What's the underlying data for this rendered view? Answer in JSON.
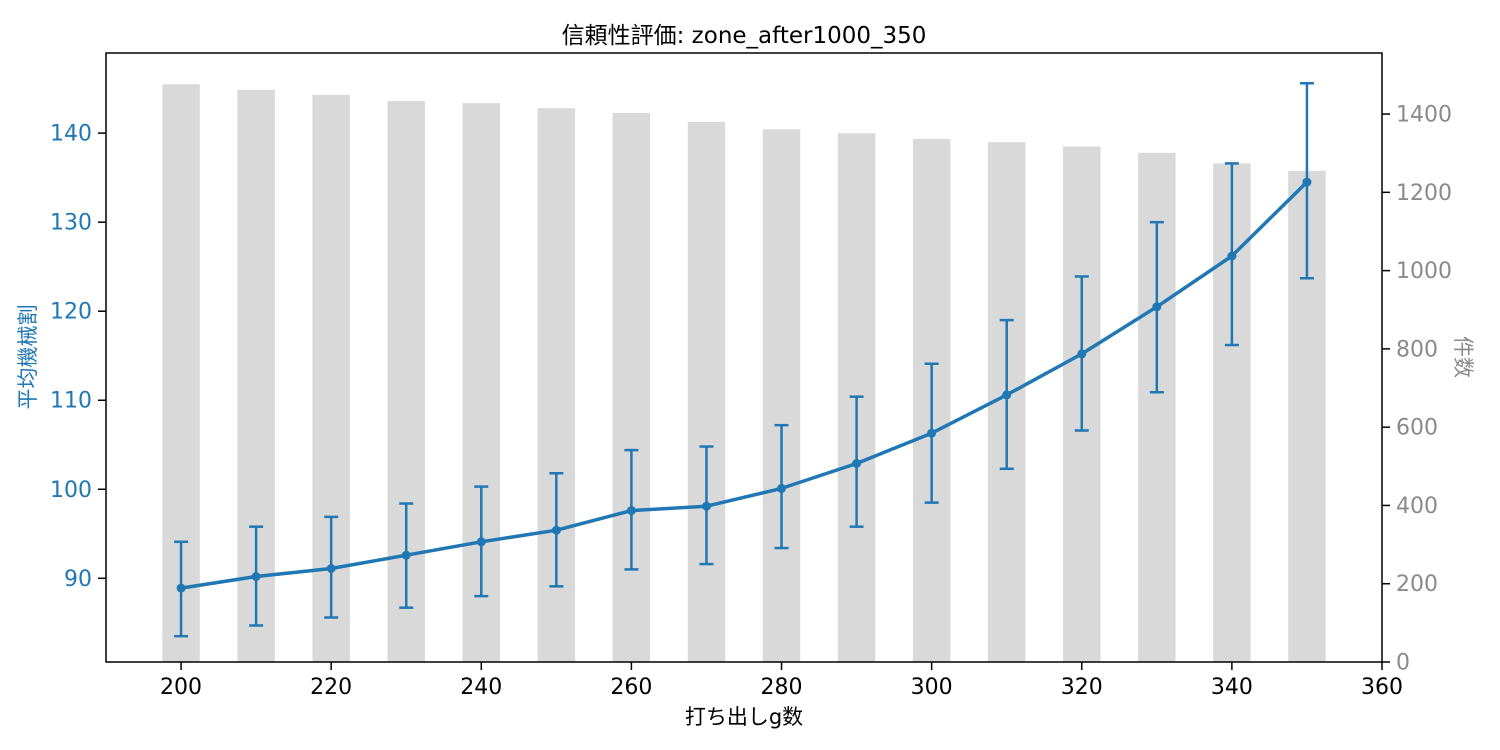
{
  "figure": {
    "title": "信頼性評価: zone_after1000_350",
    "xlabel": "打ち出しg数",
    "ylabel_left": "平均機械割",
    "ylabel_right": "件数"
  },
  "colors": {
    "line": "#1f77b4",
    "marker": "#1f77b4",
    "error_bar": "#1f77b4",
    "bar": "#d9d9d9",
    "left_tick_label": "#1f77b4",
    "right_tick_label": "#8a8a8a",
    "x_tick_label": "#000000",
    "spine": "#000000",
    "background": "#ffffff"
  },
  "chart_data": {
    "type": "composite",
    "title": "信頼性評価: zone_after1000_350",
    "xlabel": "打ち出しg数",
    "ylabel_left": "平均機械割",
    "ylabel_right": "件数",
    "grid": false,
    "legend": "none",
    "x": [
      200,
      210,
      220,
      230,
      240,
      250,
      260,
      270,
      280,
      290,
      300,
      310,
      320,
      330,
      340,
      350
    ],
    "series": [
      {
        "name": "平均機械割",
        "type": "line_with_error_bars",
        "axis": "left",
        "mean": [
          88.9,
          90.2,
          91.1,
          92.6,
          94.1,
          95.4,
          97.6,
          98.1,
          100.1,
          102.9,
          106.3,
          110.6,
          115.2,
          120.5,
          126.2,
          134.5
        ],
        "err_low": [
          83.5,
          84.7,
          85.6,
          86.7,
          88.0,
          89.1,
          91.0,
          91.6,
          93.4,
          95.8,
          98.5,
          102.3,
          106.6,
          110.9,
          116.2,
          123.7
        ],
        "err_high": [
          94.1,
          95.8,
          96.9,
          98.4,
          100.3,
          101.8,
          104.4,
          104.8,
          107.2,
          110.4,
          114.1,
          119.0,
          123.9,
          130.0,
          136.6,
          145.6
        ]
      },
      {
        "name": "件数",
        "type": "bar",
        "axis": "right",
        "values": [
          1476,
          1462,
          1449,
          1433,
          1428,
          1415,
          1403,
          1380,
          1361,
          1351,
          1336,
          1328,
          1317,
          1301,
          1274,
          1255
        ]
      }
    ],
    "x_ticks": [
      200,
      220,
      240,
      260,
      280,
      300,
      320,
      340,
      360
    ],
    "left_y_ticks": [
      90,
      100,
      110,
      120,
      130,
      140
    ],
    "right_y_ticks": [
      0,
      200,
      400,
      600,
      800,
      1000,
      1200,
      1400
    ],
    "xlim": [
      190,
      360
    ],
    "ylim_left": [
      80.6,
      149.0
    ],
    "ylim_right": [
      0,
      1556
    ],
    "bar_width_x_units": 5
  }
}
